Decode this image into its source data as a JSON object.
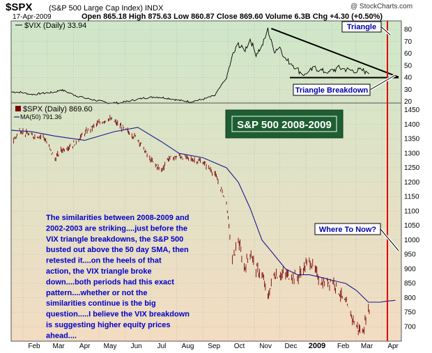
{
  "header": {
    "symbol": "$SPX",
    "name": "(S&P 500 Large Cap Index) INDX",
    "watermark": "@ StockCharts.com",
    "date": "17-Apr-2009",
    "quote": "Open 865.18  High 875.63  Low 860.87  Close 869.60  Volume 6.3B  Chg +4.30 (+0.50%)"
  },
  "colors": {
    "background_top": "#cfe7c9",
    "background_bottom": "#f3dcc2",
    "spx_bar": "#7a0000",
    "ma_line": "#1a1a8c",
    "vix_line": "#000000",
    "breakdown_line": "#e00000",
    "annotation_text": "#0000cc",
    "title_box_bg": "#1d5e32",
    "title_box_text": "#ffffff"
  },
  "chart_data": [
    {
      "type": "line",
      "legend": "$VIX (Daily) 33.94",
      "ylim": [
        20,
        85
      ],
      "yticks": [
        20,
        30,
        40,
        50,
        60,
        70,
        80
      ],
      "x": [
        "2008-01-28",
        "2008-02-11",
        "2008-02-25",
        "2008-03-10",
        "2008-03-17",
        "2008-03-31",
        "2008-04-14",
        "2008-04-28",
        "2008-05-12",
        "2008-05-26",
        "2008-06-09",
        "2008-06-23",
        "2008-07-07",
        "2008-07-21",
        "2008-08-04",
        "2008-08-18",
        "2008-09-01",
        "2008-09-15",
        "2008-09-29",
        "2008-10-06",
        "2008-10-13",
        "2008-10-20",
        "2008-10-27",
        "2008-11-03",
        "2008-11-10",
        "2008-11-17",
        "2008-11-24",
        "2008-12-01",
        "2008-12-08",
        "2008-12-15",
        "2008-12-29",
        "2009-01-12",
        "2009-01-26",
        "2009-02-09",
        "2009-02-23",
        "2009-03-09",
        "2009-03-23",
        "2009-04-06",
        "2009-04-17"
      ],
      "y": [
        28,
        26,
        27,
        28,
        30,
        26,
        23,
        21,
        19,
        19,
        21,
        23,
        24,
        23,
        21,
        20,
        22,
        25,
        40,
        58,
        68,
        62,
        72,
        60,
        66,
        80,
        62,
        66,
        55,
        52,
        42,
        48,
        44,
        48,
        46,
        46,
        42,
        40,
        34
      ],
      "annotations": [
        "Triangle",
        "Triangle Breakdown"
      ]
    },
    {
      "type": "bar",
      "title": "S&P 500 2008-2009",
      "legend": [
        "$SPX (Daily) 869.60",
        "MA(50) 791.36"
      ],
      "ylim": [
        650,
        1450
      ],
      "yticks": [
        700,
        750,
        800,
        850,
        900,
        950,
        1000,
        1050,
        1100,
        1150,
        1200,
        1250,
        1300,
        1350,
        1400,
        1450
      ],
      "xticks": [
        "Feb",
        "Mar",
        "Apr",
        "May",
        "Jun",
        "Jul",
        "Aug",
        "Sep",
        "Oct",
        "Nov",
        "Dec",
        "2009",
        "Feb",
        "Mar",
        "Apr"
      ],
      "series": [
        {
          "name": "$SPX (Daily) 869.60",
          "x": [
            "2008-01-18",
            "2008-01-28",
            "2008-02-11",
            "2008-02-25",
            "2008-03-10",
            "2008-03-17",
            "2008-03-31",
            "2008-04-14",
            "2008-04-28",
            "2008-05-12",
            "2008-05-19",
            "2008-06-02",
            "2008-06-16",
            "2008-06-30",
            "2008-07-14",
            "2008-07-21",
            "2008-08-04",
            "2008-08-18",
            "2008-09-01",
            "2008-09-15",
            "2008-09-29",
            "2008-10-06",
            "2008-10-13",
            "2008-10-20",
            "2008-10-27",
            "2008-11-03",
            "2008-11-10",
            "2008-11-17",
            "2008-11-24",
            "2008-12-08",
            "2008-12-22",
            "2009-01-05",
            "2009-01-20",
            "2009-02-02",
            "2009-02-17",
            "2009-03-02",
            "2009-03-09",
            "2009-03-16",
            "2009-03-30",
            "2009-04-06",
            "2009-04-17"
          ],
          "y": [
            1330,
            1380,
            1360,
            1360,
            1280,
            1310,
            1330,
            1370,
            1400,
            1420,
            1410,
            1380,
            1350,
            1280,
            1240,
            1280,
            1290,
            1280,
            1270,
            1230,
            1130,
            930,
            1000,
            900,
            960,
            900,
            880,
            800,
            880,
            880,
            870,
            930,
            850,
            860,
            780,
            700,
            680,
            760,
            800,
            840,
            869.6
          ]
        },
        {
          "name": "MA(50) 791.36",
          "x": [
            "2008-01-18",
            "2008-02-11",
            "2008-03-10",
            "2008-04-14",
            "2008-05-19",
            "2008-06-16",
            "2008-07-14",
            "2008-08-04",
            "2008-09-01",
            "2008-09-29",
            "2008-10-13",
            "2008-10-27",
            "2008-11-10",
            "2008-11-24",
            "2008-12-08",
            "2008-12-22",
            "2009-01-05",
            "2009-01-20",
            "2009-02-02",
            "2009-02-17",
            "2009-03-02",
            "2009-03-16",
            "2009-03-30",
            "2009-04-06",
            "2009-04-17"
          ],
          "y": [
            1380,
            1375,
            1360,
            1345,
            1375,
            1390,
            1340,
            1300,
            1285,
            1250,
            1200,
            1110,
            1000,
            950,
            900,
            880,
            880,
            870,
            860,
            850,
            825,
            785,
            785,
            788,
            791.36
          ]
        }
      ],
      "annotations": [
        "Where To Now?",
        "The similarities between 2008-2009 and 2002-2003 are striking....just before the VIX triangle breakdowns, the S&P 500 busted out above the 50 day SMA, then retested it....on the heels of that action, the VIX triangle broke down....both periods had this exact pattern....whether or not the similarities continue is the big question.....I believe the VIX breakdown is suggesting higher equity prices ahead...."
      ]
    }
  ]
}
